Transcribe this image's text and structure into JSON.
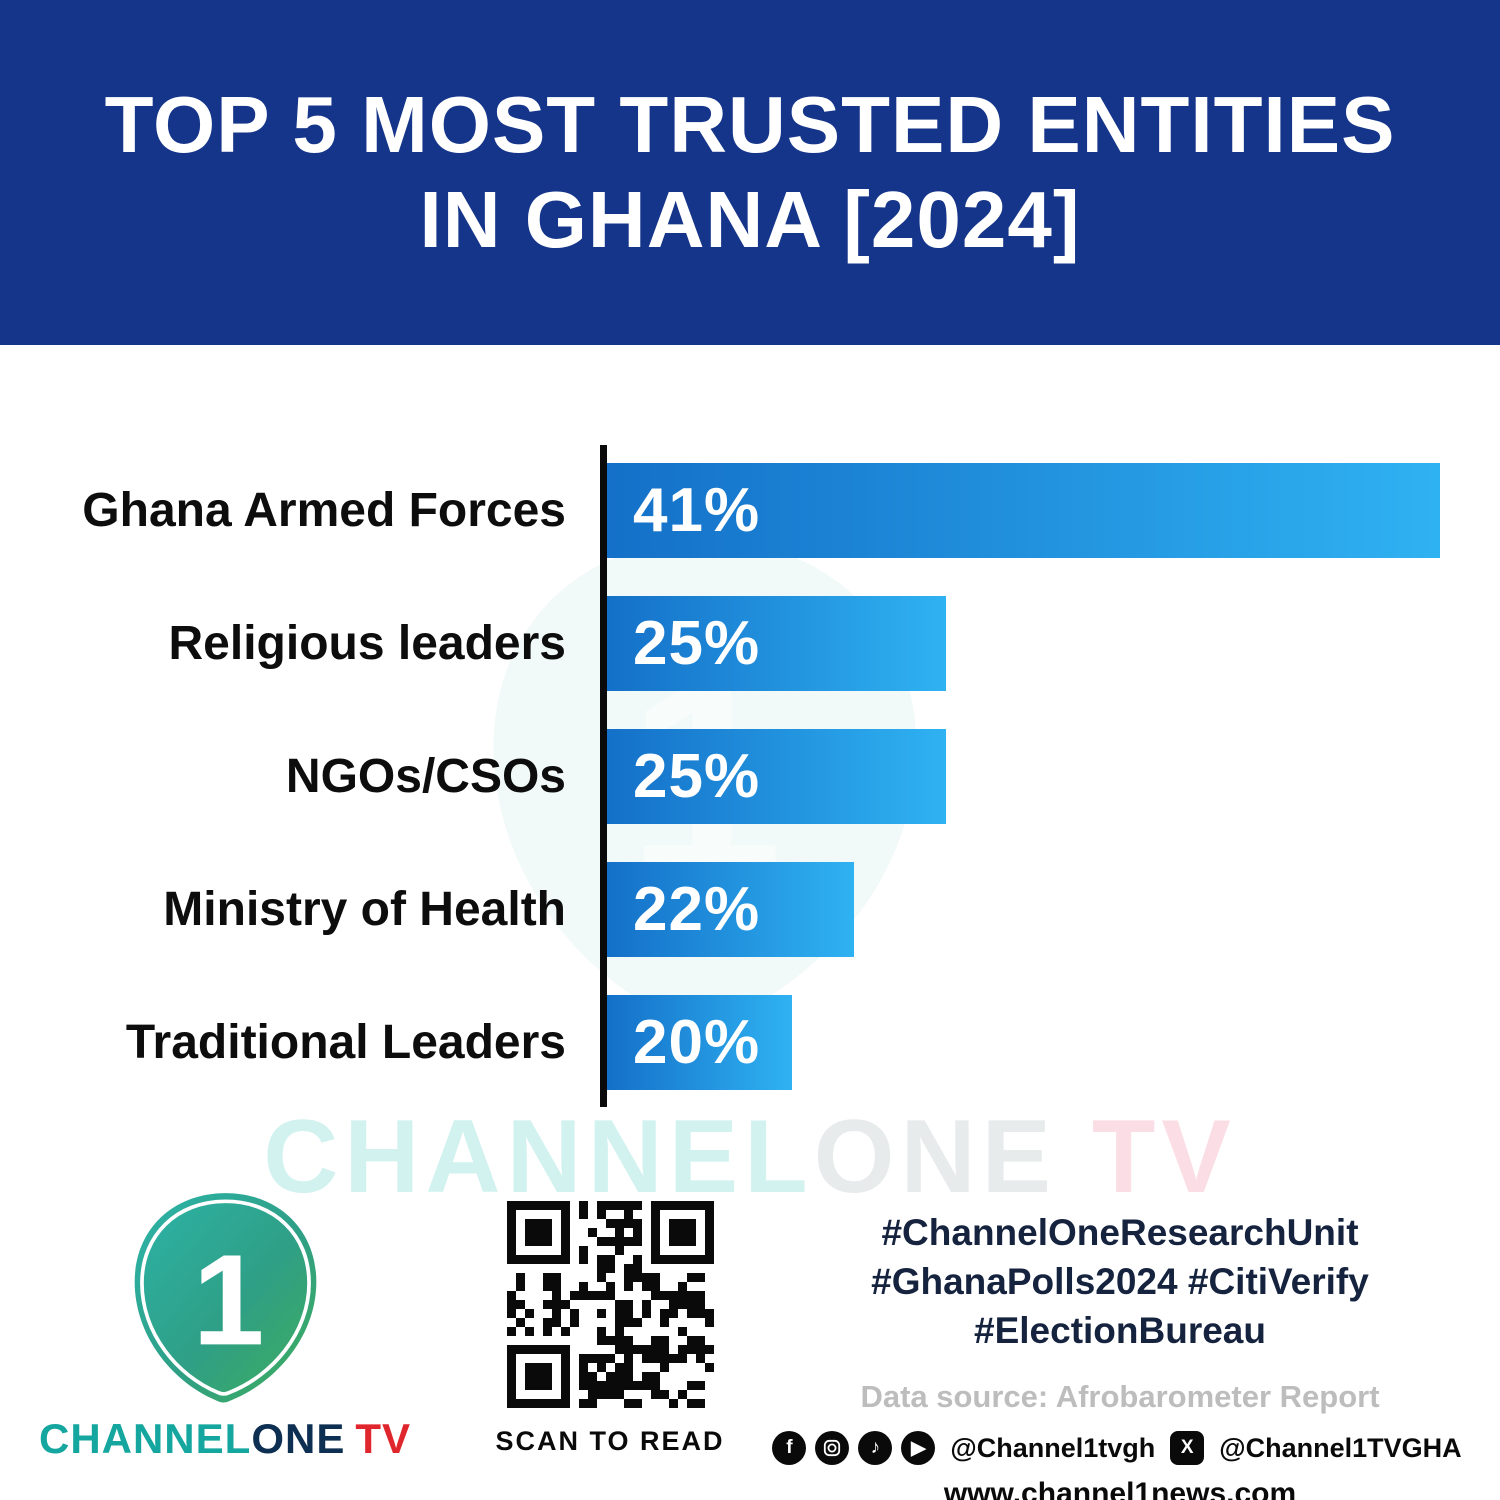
{
  "header": {
    "line1": "TOP 5 MOST TRUSTED ENTITIES",
    "line2": "IN GHANA [2024]"
  },
  "chart_data": {
    "type": "bar",
    "orientation": "horizontal",
    "title": "TOP 5 MOST TRUSTED ENTITIES IN GHANA [2024]",
    "categories": [
      "Ghana Armed Forces",
      "Religious leaders",
      "NGOs/CSOs",
      "Ministry of Health",
      "Traditional Leaders"
    ],
    "values": [
      41,
      25,
      25,
      22,
      20
    ],
    "value_labels": [
      "41%",
      "25%",
      "25%",
      "22%",
      "20%"
    ],
    "xlabel": "",
    "ylabel": "",
    "xlim": [
      0,
      45
    ],
    "grid": false,
    "legend": false,
    "bar_gradient": [
      "#1470c8",
      "#2fb2f2"
    ],
    "source": "Data source: Afrobarometer Report"
  },
  "watermark": {
    "channel": "CHANNEL",
    "one": "ONE",
    "tv": "TV"
  },
  "footer": {
    "brand": {
      "channel": "CHANNEL",
      "one": "ONE",
      "tv": "TV",
      "logo_glyph": "1"
    },
    "qr_caption": "SCAN TO READ",
    "hashtags": [
      "#ChannelOneResearchUnit",
      "#GhanaPolls2024 #CitiVerify",
      "#ElectionBureau"
    ],
    "data_source": "Data source: Afrobarometer Report",
    "social": {
      "icons": [
        "facebook-icon",
        "instagram-icon",
        "tiktok-icon",
        "youtube-icon",
        "x-icon"
      ],
      "facebook_handle": "@Channel1tvgh",
      "x_handle": "@Channel1TVGHA"
    },
    "website": "www.channel1news.com"
  },
  "colors": {
    "header_bg": "#15358a",
    "bar_start": "#1470c8",
    "bar_end": "#2fb2f2",
    "accent_teal": "#15a79f",
    "accent_red": "#e0262d"
  }
}
